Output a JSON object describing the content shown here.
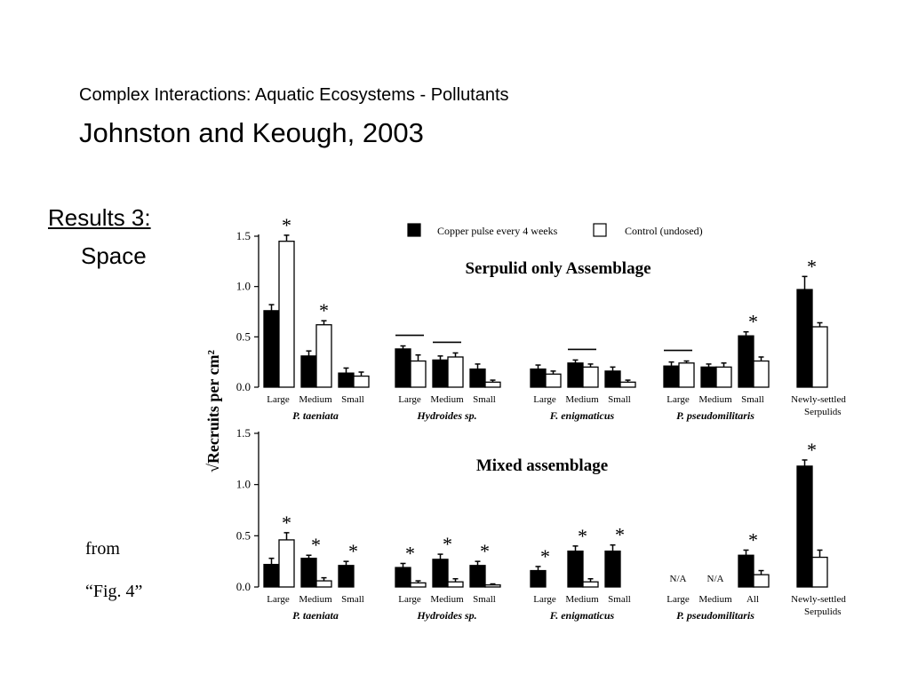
{
  "slide": {
    "title": "Complex Interactions: Aquatic Ecosystems - Pollutants",
    "author": "Johnston and Keough, 2003",
    "results_title": "Results 3:",
    "results_sub": "Space",
    "from": "from",
    "fig_ref": "“Fig. 4”"
  },
  "colors": {
    "copper": "#000000",
    "control": "#ffffff",
    "axis": "#000000"
  },
  "chart_data": [
    {
      "type": "bar",
      "title": "Serpulid only Assemblage",
      "ylabel": "√Recruits per cm²",
      "ylim": [
        0,
        1.5
      ],
      "yticks": [
        "0.0",
        "0.5",
        "1.0",
        "1.5"
      ],
      "legend": [
        "Copper pulse every 4 weeks",
        "Control (undosed)"
      ],
      "legend_position": "top",
      "grid": false,
      "groups": [
        {
          "name": "P. taeniata",
          "items": [
            {
              "label": "Large",
              "copper": 0.76,
              "control": 1.45,
              "copper_err": 0.06,
              "control_err": 0.06,
              "star": "control"
            },
            {
              "label": "Medium",
              "copper": 0.31,
              "control": 0.62,
              "copper_err": 0.05,
              "control_err": 0.04,
              "star": "control"
            },
            {
              "label": "Small",
              "copper": 0.14,
              "control": 0.11,
              "copper_err": 0.05,
              "control_err": 0.04
            }
          ]
        },
        {
          "name": "Hydroides sp.",
          "items": [
            {
              "label": "Large",
              "copper": 0.38,
              "control": 0.26,
              "copper_err": 0.03,
              "control_err": 0.06,
              "bar": true
            },
            {
              "label": "Medium",
              "copper": 0.27,
              "control": 0.3,
              "copper_err": 0.04,
              "control_err": 0.04,
              "bar": true
            },
            {
              "label": "Small",
              "copper": 0.18,
              "control": 0.05,
              "copper_err": 0.05,
              "control_err": 0.02
            }
          ]
        },
        {
          "name": "F. enigmaticus",
          "items": [
            {
              "label": "Large",
              "copper": 0.18,
              "control": 0.13,
              "copper_err": 0.04,
              "control_err": 0.03
            },
            {
              "label": "Medium",
              "copper": 0.24,
              "control": 0.2,
              "copper_err": 0.03,
              "control_err": 0.03,
              "bar": true
            },
            {
              "label": "Small",
              "copper": 0.16,
              "control": 0.05,
              "copper_err": 0.04,
              "control_err": 0.02
            }
          ]
        },
        {
          "name": "P. pseudomilitaris",
          "items": [
            {
              "label": "Large",
              "copper": 0.21,
              "control": 0.24,
              "copper_err": 0.04,
              "control_err": 0.02,
              "bar": true
            },
            {
              "label": "Medium",
              "copper": 0.2,
              "control": 0.2,
              "copper_err": 0.03,
              "control_err": 0.04
            },
            {
              "label": "Small",
              "copper": 0.51,
              "control": 0.26,
              "copper_err": 0.04,
              "control_err": 0.04,
              "star": "copper"
            }
          ]
        },
        {
          "name": "",
          "items": [
            {
              "label": "Newly-settled Serpulids",
              "copper": 0.97,
              "control": 0.6,
              "copper_err": 0.13,
              "control_err": 0.04,
              "star": "copper"
            }
          ]
        }
      ]
    },
    {
      "type": "bar",
      "title": "Mixed assemblage",
      "ylabel": "√Recruits per cm²",
      "ylim": [
        0,
        1.5
      ],
      "yticks": [
        "0.0",
        "0.5",
        "1.0",
        "1.5"
      ],
      "legend": [
        "Copper pulse every 4 weeks",
        "Control (undosed)"
      ],
      "grid": false,
      "groups": [
        {
          "name": "P. taeniata",
          "items": [
            {
              "label": "Large",
              "copper": 0.22,
              "control": 0.46,
              "copper_err": 0.06,
              "control_err": 0.07,
              "star": "control"
            },
            {
              "label": "Medium",
              "copper": 0.28,
              "control": 0.06,
              "copper_err": 0.03,
              "control_err": 0.03,
              "star": "copper"
            },
            {
              "label": "Small",
              "copper": 0.21,
              "control": 0.0,
              "copper_err": 0.04,
              "control_err": 0.0,
              "star": "copper"
            }
          ]
        },
        {
          "name": "Hydroides sp.",
          "items": [
            {
              "label": "Large",
              "copper": 0.19,
              "control": 0.04,
              "copper_err": 0.04,
              "control_err": 0.02,
              "star": "copper"
            },
            {
              "label": "Medium",
              "copper": 0.27,
              "control": 0.05,
              "copper_err": 0.05,
              "control_err": 0.03,
              "star": "copper"
            },
            {
              "label": "Small",
              "copper": 0.21,
              "control": 0.02,
              "copper_err": 0.04,
              "control_err": 0.01,
              "star": "copper"
            }
          ]
        },
        {
          "name": "F. enigmaticus",
          "items": [
            {
              "label": "Large",
              "copper": 0.16,
              "control": 0.0,
              "copper_err": 0.04,
              "control_err": 0.0,
              "star": "copper"
            },
            {
              "label": "Medium",
              "copper": 0.35,
              "control": 0.05,
              "copper_err": 0.05,
              "control_err": 0.03,
              "star": "copper"
            },
            {
              "label": "Small",
              "copper": 0.35,
              "control": 0.0,
              "copper_err": 0.06,
              "control_err": 0.0,
              "star": "copper"
            }
          ]
        },
        {
          "name": "P. pseudomilitaris",
          "items": [
            {
              "label": "Large",
              "na": "N/A"
            },
            {
              "label": "Medium",
              "na": "N/A"
            },
            {
              "label": "All",
              "copper": 0.31,
              "control": 0.12,
              "copper_err": 0.05,
              "control_err": 0.04,
              "star": "copper"
            }
          ]
        },
        {
          "name": "",
          "items": [
            {
              "label": "Newly-settled Serpulids",
              "copper": 1.18,
              "control": 0.29,
              "copper_err": 0.06,
              "control_err": 0.07,
              "star": "copper"
            }
          ]
        }
      ]
    }
  ]
}
